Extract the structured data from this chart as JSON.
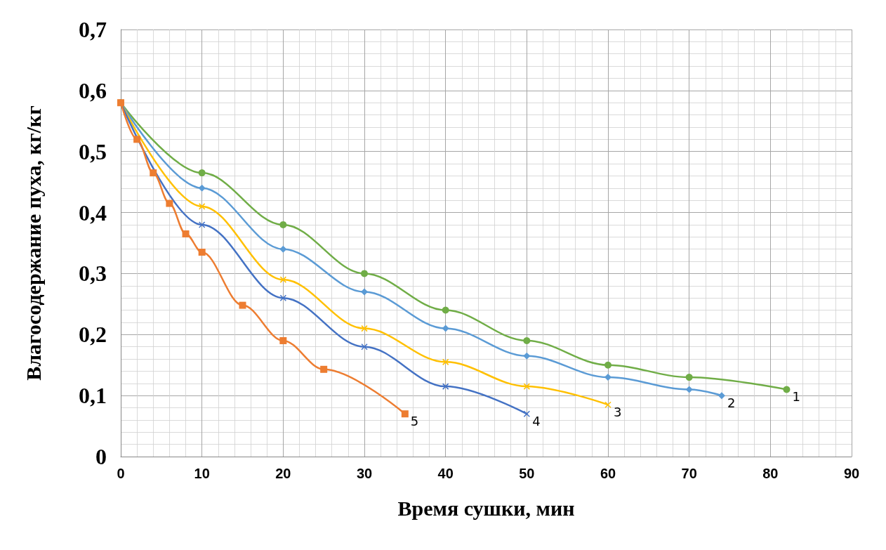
{
  "chart_data": {
    "type": "line",
    "xlabel": "Время сушки, мин",
    "ylabel": "Влагосодержание пуха, кг/кг",
    "xlim": [
      0,
      90
    ],
    "xticks": [
      0,
      10,
      20,
      30,
      40,
      50,
      60,
      70,
      80,
      90
    ],
    "ylim": [
      0,
      0.7
    ],
    "yticks": [
      0,
      {
        "value": 0.1,
        "label": "0,1"
      },
      {
        "value": 0.2,
        "label": "0,2"
      },
      {
        "value": 0.3,
        "label": "0,3"
      },
      {
        "value": 0.4,
        "label": "0,4"
      },
      {
        "value": 0.5,
        "label": "0,5"
      },
      {
        "value": 0.6,
        "label": "0,6"
      },
      {
        "value": 0.7,
        "label": "0,7"
      }
    ],
    "grid": true,
    "legend": false,
    "series": [
      {
        "name": "1",
        "color": "#70ad47",
        "marker": "circle",
        "x": [
          0,
          10,
          20,
          30,
          40,
          50,
          60,
          70,
          82
        ],
        "values": [
          0.58,
          0.465,
          0.38,
          0.3,
          0.24,
          0.19,
          0.15,
          0.13,
          0.11
        ]
      },
      {
        "name": "2",
        "color": "#5b9bd5",
        "marker": "diamond",
        "x": [
          0,
          10,
          20,
          30,
          40,
          50,
          60,
          70,
          74
        ],
        "values": [
          0.58,
          0.44,
          0.34,
          0.27,
          0.21,
          0.165,
          0.13,
          0.11,
          0.1
        ]
      },
      {
        "name": "3",
        "color": "#ffc000",
        "marker": "cross",
        "x": [
          0,
          10,
          20,
          30,
          40,
          50,
          60
        ],
        "values": [
          0.58,
          0.41,
          0.29,
          0.21,
          0.155,
          0.115,
          0.085
        ]
      },
      {
        "name": "4",
        "color": "#4472c4",
        "marker": "cross",
        "x": [
          0,
          10,
          20,
          30,
          40,
          50
        ],
        "values": [
          0.58,
          0.38,
          0.26,
          0.18,
          0.115,
          0.07
        ]
      },
      {
        "name": "5",
        "color": "#ed7d31",
        "marker": "square",
        "x": [
          0,
          2,
          4,
          6,
          8,
          10,
          15,
          20,
          25,
          35
        ],
        "values": [
          0.58,
          0.52,
          0.465,
          0.415,
          0.365,
          0.335,
          0.248,
          0.19,
          0.143,
          0.07
        ]
      }
    ]
  }
}
